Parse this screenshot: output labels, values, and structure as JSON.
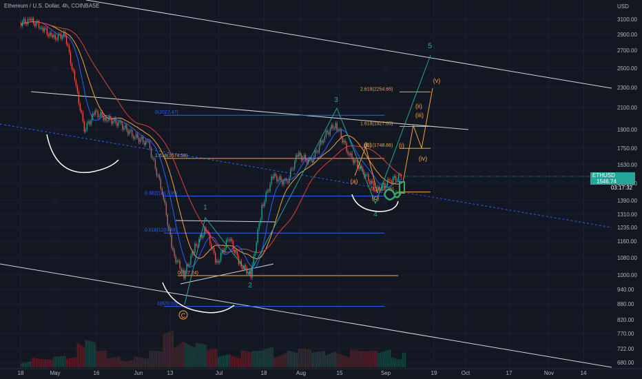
{
  "header": {
    "title": "Ethereum / U.S. Dollar, 4h, COINBASE"
  },
  "price_axis": {
    "currency": "USD"
  },
  "current_price": {
    "symbol": "ETHUSD",
    "value": "1546.74",
    "countdown": "03:17:32"
  },
  "colors": {
    "background": "#131722",
    "grid": "#1c2130",
    "text": "#b2b5be",
    "up": "#26a69a",
    "down": "#ef5350",
    "fib_blue": "#2962ff",
    "fib_orange": "#f7a43a",
    "wave_green": "#26a69a",
    "wave_orange": "#f7a43a",
    "channel": "#d1d4dc",
    "ma_blue": "#2962ff",
    "ma_orange": "#f7a43a",
    "ma_red": "#e0403b",
    "arc": "#ffffff"
  },
  "chart_data": {
    "type": "line",
    "title": "Ethereum / U.S. Dollar, 4h, COINBASE",
    "ylabel": "USD",
    "ylim": [
      650,
      3500
    ],
    "y_scale": "log",
    "y_ticks": [
      "3100.00",
      "2900.00",
      "2700.00",
      "2500.00",
      "2300.00",
      "2100.00",
      "1900.00",
      "1750.00",
      "1630.00",
      "1500.00",
      "1390.00",
      "1310.00",
      "1235.00",
      "1160.00",
      "1080.00",
      "1000.00",
      "940.00",
      "880.00",
      "820.00",
      "770.00",
      "722.00",
      "680.00"
    ],
    "x_ticks": [
      "18",
      "May",
      "16",
      "Jun",
      "13",
      "Jul",
      "18",
      "Aug",
      "15",
      "Sep",
      "19",
      "Oct",
      "17",
      "Nov",
      "14"
    ],
    "price_path": {
      "dates": [
        "Apr 18",
        "Apr 22",
        "Apr 26",
        "Apr 30",
        "May 5",
        "May 9",
        "May 12",
        "May 16",
        "May 20",
        "May 25",
        "May 30",
        "Jun 5",
        "Jun 10",
        "Jun 14",
        "Jun 18",
        "Jun 22",
        "Jun 26",
        "Jun 30",
        "Jul 5",
        "Jul 9",
        "Jul 13",
        "Jul 17",
        "Jul 21",
        "Jul 26",
        "Jul 30",
        "Aug 5",
        "Aug 10",
        "Aug 14",
        "Aug 19",
        "Aug 24",
        "Aug 29",
        "Sep 3",
        "Sep 7"
      ],
      "values": [
        3050,
        3080,
        3000,
        2850,
        2900,
        2300,
        1900,
        2050,
        2000,
        1950,
        1850,
        1780,
        1450,
        1100,
        1000,
        1130,
        1230,
        1050,
        1180,
        1050,
        1000,
        1350,
        1550,
        1500,
        1700,
        1650,
        1850,
        1950,
        1700,
        1580,
        1450,
        1520,
        1546.74
      ]
    },
    "volume": {
      "values": [
        0.25,
        0.3,
        0.2,
        0.28,
        0.35,
        0.9,
        0.7,
        0.4,
        0.3,
        0.35,
        0.3,
        0.4,
        0.95,
        1.0,
        0.8,
        0.6,
        0.45,
        0.4,
        0.5,
        0.45,
        0.4,
        0.55,
        0.6,
        0.5,
        0.45,
        0.4,
        0.55,
        0.5,
        0.45,
        0.4,
        0.5,
        0.45,
        0.4
      ]
    },
    "fib_retracement": [
      {
        "ratio": "0.382",
        "price": "1417.96",
        "label": "0.382(1417.96)"
      },
      {
        "ratio": "0.618",
        "price": "1203.66",
        "label": "0.618(1203.66)"
      },
      {
        "ratio": "1",
        "price": "870.10",
        "label": "1(870.10)"
      },
      {
        "ratio": "0",
        "price": "2027.47",
        "label": "0(2027.47)"
      }
    ],
    "fib_extension": [
      {
        "ratio": "1.618",
        "price": "1674.58",
        "label": "1.618(1674.58)"
      },
      {
        "ratio": "0",
        "price": "997.24",
        "label": "0(997.24)"
      },
      {
        "ratio": "2.618",
        "price": "2254.65",
        "label": "2.618(2254.65)"
      },
      {
        "ratio": "1.618",
        "price": "1927.05",
        "label": "1.618(1927.05)"
      },
      {
        "ratio": "1",
        "price": "1748.86",
        "label": "(b)1(1748.86)"
      },
      {
        "ratio": "0",
        "price": "1443.35",
        "label": "0(1443.35)"
      }
    ],
    "wave_labels_green": [
      "1",
      "2",
      "3",
      "4",
      "5"
    ],
    "wave_labels_orange": [
      "C",
      "(a)",
      "(b)",
      "(c)",
      "(i)",
      "(ii)",
      "(iii)",
      "(iv)",
      "(v)"
    ],
    "grid": true
  }
}
